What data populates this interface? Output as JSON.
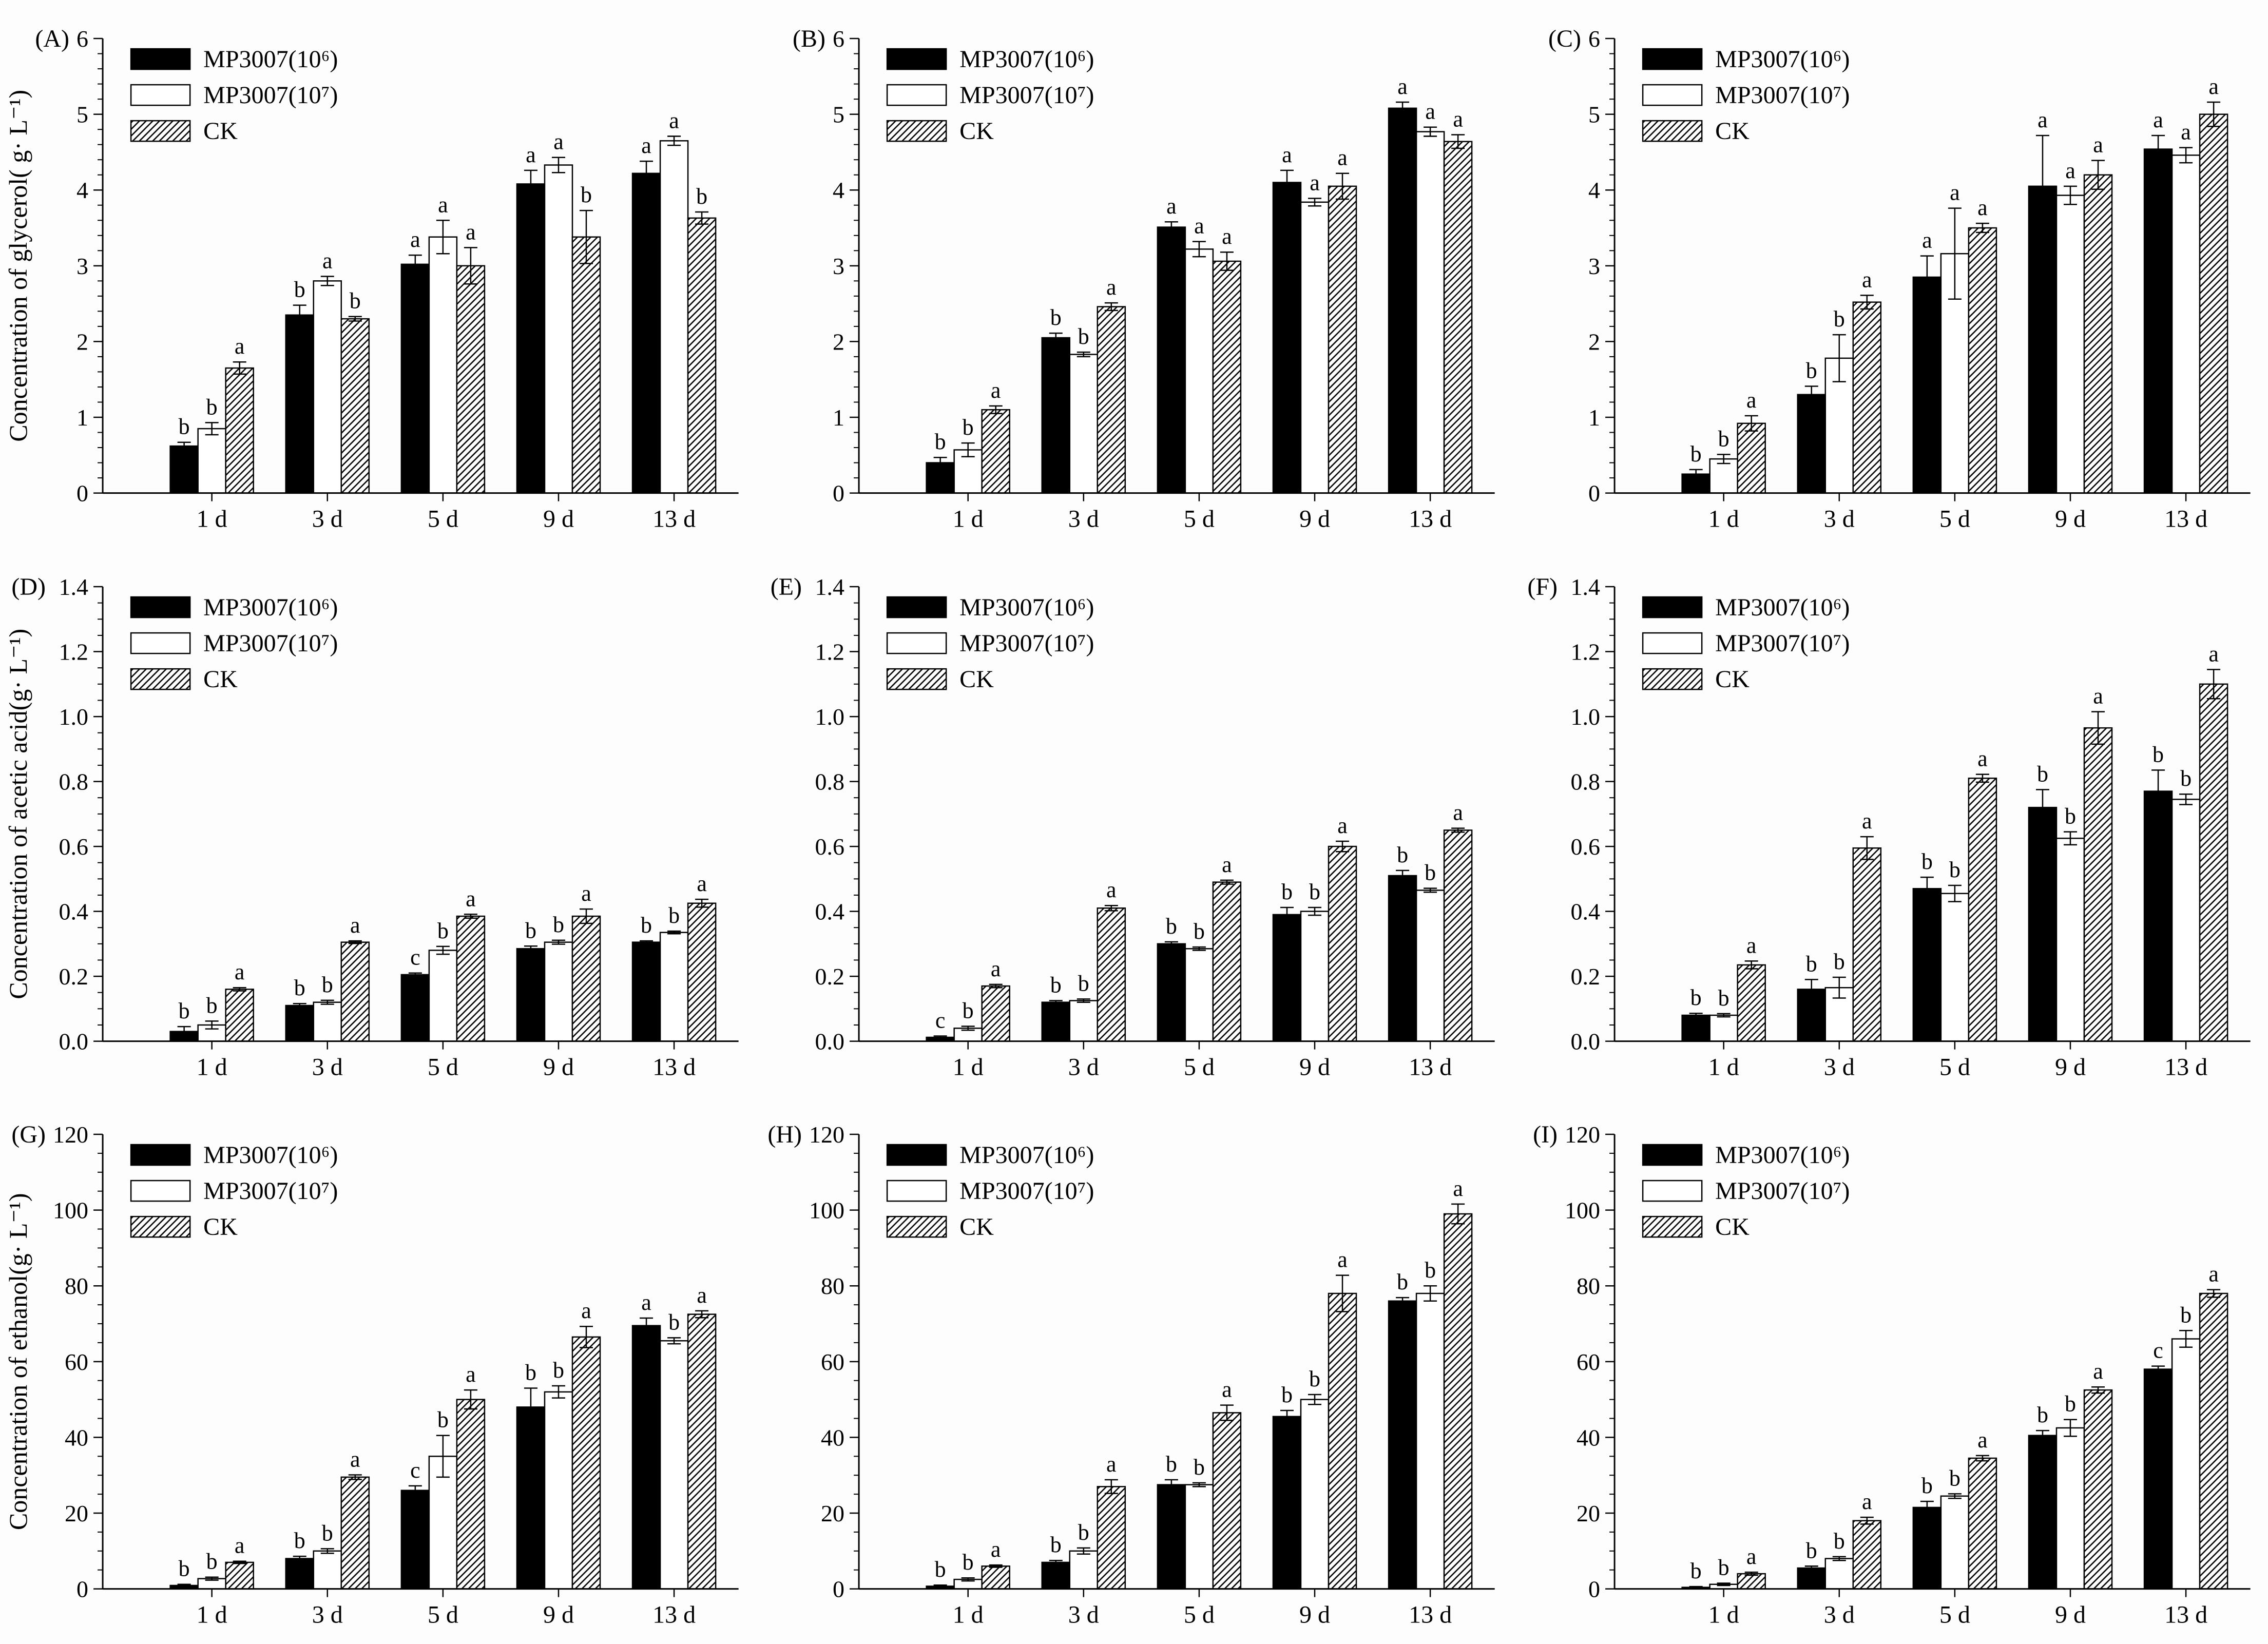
{
  "figure": {
    "background": "#fdfdfd",
    "ink_color": "#000000",
    "categories": [
      "1 d",
      "3 d",
      "5 d",
      "9 d",
      "13 d"
    ],
    "series_names": [
      "MP3007(10⁶)",
      "MP3007(10⁷)",
      "CK"
    ],
    "series_styles": [
      "solid-black",
      "open-white",
      "hatched"
    ]
  },
  "chart_data": [
    {
      "type": "bar",
      "panel_label": "(A)",
      "ylabel": "Concentration of glycerol( g· L⁻¹)",
      "ylim": [
        0,
        6
      ],
      "ytick_step": 1,
      "yminor_step": 0.2,
      "ytick_decimals": 0,
      "grid": false,
      "legend_position": "top-left",
      "categories": [
        "1 d",
        "3 d",
        "5 d",
        "9 d",
        "13 d"
      ],
      "series": [
        {
          "name": "MP3007(10⁶)",
          "style": "solid-black",
          "values": [
            0.62,
            2.35,
            3.02,
            4.08,
            4.22
          ],
          "errors": [
            0.05,
            0.13,
            0.12,
            0.18,
            0.16
          ],
          "letters": [
            "b",
            "b",
            "a",
            "a",
            "a"
          ]
        },
        {
          "name": "MP3007(10⁷)",
          "style": "open-white",
          "values": [
            0.85,
            2.8,
            3.38,
            4.33,
            4.65
          ],
          "errors": [
            0.08,
            0.06,
            0.22,
            0.1,
            0.06
          ],
          "letters": [
            "b",
            "a",
            "a",
            "a",
            "a"
          ]
        },
        {
          "name": "CK",
          "style": "hatched",
          "values": [
            1.65,
            2.3,
            3.0,
            3.38,
            3.63
          ],
          "errors": [
            0.08,
            0.03,
            0.24,
            0.35,
            0.08
          ],
          "letters": [
            "a",
            "b",
            "a",
            "b",
            "b"
          ]
        }
      ]
    },
    {
      "type": "bar",
      "panel_label": "(B)",
      "ylabel": "",
      "ylim": [
        0,
        6
      ],
      "ytick_step": 1,
      "yminor_step": 0.2,
      "ytick_decimals": 0,
      "grid": false,
      "legend_position": "top-left",
      "categories": [
        "1 d",
        "3 d",
        "5 d",
        "9 d",
        "13 d"
      ],
      "series": [
        {
          "name": "MP3007(10⁶)",
          "style": "solid-black",
          "values": [
            0.4,
            2.05,
            3.51,
            4.1,
            5.08
          ],
          "errors": [
            0.07,
            0.06,
            0.07,
            0.16,
            0.08
          ],
          "letters": [
            "b",
            "b",
            "a",
            "a",
            "a"
          ]
        },
        {
          "name": "MP3007(10⁷)",
          "style": "open-white",
          "values": [
            0.57,
            1.83,
            3.22,
            3.84,
            4.77
          ],
          "errors": [
            0.09,
            0.03,
            0.1,
            0.05,
            0.06
          ],
          "letters": [
            "b",
            "b",
            "a",
            "a",
            "a"
          ]
        },
        {
          "name": "CK",
          "style": "hatched",
          "values": [
            1.1,
            2.46,
            3.06,
            4.05,
            4.64
          ],
          "errors": [
            0.05,
            0.05,
            0.12,
            0.17,
            0.09
          ],
          "letters": [
            "a",
            "a",
            "a",
            "a",
            "a"
          ]
        }
      ]
    },
    {
      "type": "bar",
      "panel_label": "(C)",
      "ylabel": "",
      "ylim": [
        0,
        6
      ],
      "ytick_step": 1,
      "yminor_step": 0.2,
      "ytick_decimals": 0,
      "grid": false,
      "legend_position": "top-left",
      "categories": [
        "1 d",
        "3 d",
        "5 d",
        "9 d",
        "13 d"
      ],
      "series": [
        {
          "name": "MP3007(10⁶)",
          "style": "solid-black",
          "values": [
            0.25,
            1.3,
            2.85,
            4.05,
            4.54
          ],
          "errors": [
            0.06,
            0.11,
            0.28,
            0.67,
            0.18
          ],
          "letters": [
            "b",
            "b",
            "a",
            "a",
            "a"
          ]
        },
        {
          "name": "MP3007(10⁷)",
          "style": "open-white",
          "values": [
            0.45,
            1.78,
            3.16,
            3.93,
            4.46
          ],
          "errors": [
            0.06,
            0.31,
            0.6,
            0.12,
            0.1
          ],
          "letters": [
            "b",
            "b",
            "a",
            "a",
            "a"
          ]
        },
        {
          "name": "CK",
          "style": "hatched",
          "values": [
            0.92,
            2.52,
            3.5,
            4.2,
            5.0
          ],
          "errors": [
            0.1,
            0.09,
            0.06,
            0.19,
            0.16
          ],
          "letters": [
            "a",
            "a",
            "a",
            "a",
            "a"
          ]
        }
      ]
    },
    {
      "type": "bar",
      "panel_label": "(D)",
      "ylabel": "Concentration of acetic acid(g· L⁻¹)",
      "ylim": [
        0,
        1.4
      ],
      "ytick_step": 0.2,
      "yminor_step": 0.05,
      "ytick_decimals": 1,
      "grid": false,
      "legend_position": "top-left",
      "categories": [
        "1 d",
        "3 d",
        "5 d",
        "9 d",
        "13 d"
      ],
      "series": [
        {
          "name": "MP3007(10⁶)",
          "style": "solid-black",
          "values": [
            0.03,
            0.11,
            0.205,
            0.285,
            0.305
          ],
          "errors": [
            0.015,
            0.006,
            0.005,
            0.008,
            0.004
          ],
          "letters": [
            "b",
            "b",
            "c",
            "b",
            "b"
          ]
        },
        {
          "name": "MP3007(10⁷)",
          "style": "open-white",
          "values": [
            0.05,
            0.12,
            0.28,
            0.305,
            0.335
          ],
          "errors": [
            0.012,
            0.006,
            0.012,
            0.006,
            0.004
          ],
          "letters": [
            "b",
            "b",
            "b",
            "b",
            "b"
          ]
        },
        {
          "name": "CK",
          "style": "hatched",
          "values": [
            0.16,
            0.305,
            0.385,
            0.385,
            0.425
          ],
          "errors": [
            0.005,
            0.004,
            0.006,
            0.022,
            0.012
          ],
          "letters": [
            "a",
            "a",
            "a",
            "a",
            "a"
          ]
        }
      ]
    },
    {
      "type": "bar",
      "panel_label": "(E)",
      "ylabel": "",
      "ylim": [
        0,
        1.4
      ],
      "ytick_step": 0.2,
      "yminor_step": 0.05,
      "ytick_decimals": 1,
      "grid": false,
      "legend_position": "top-left",
      "categories": [
        "1 d",
        "3 d",
        "5 d",
        "9 d",
        "13 d"
      ],
      "series": [
        {
          "name": "MP3007(10⁶)",
          "style": "solid-black",
          "values": [
            0.012,
            0.12,
            0.3,
            0.39,
            0.51
          ],
          "errors": [
            0.004,
            0.005,
            0.006,
            0.022,
            0.016
          ],
          "letters": [
            "c",
            "b",
            "b",
            "b",
            "b"
          ]
        },
        {
          "name": "MP3007(10⁷)",
          "style": "open-white",
          "values": [
            0.04,
            0.125,
            0.285,
            0.4,
            0.465
          ],
          "errors": [
            0.006,
            0.005,
            0.005,
            0.012,
            0.006
          ],
          "letters": [
            "b",
            "b",
            "b",
            "b",
            "b"
          ]
        },
        {
          "name": "CK",
          "style": "hatched",
          "values": [
            0.17,
            0.41,
            0.49,
            0.6,
            0.65
          ],
          "errors": [
            0.005,
            0.008,
            0.006,
            0.016,
            0.006
          ],
          "letters": [
            "a",
            "a",
            "a",
            "a",
            "a"
          ]
        }
      ]
    },
    {
      "type": "bar",
      "panel_label": "(F)",
      "ylabel": "",
      "ylim": [
        0,
        1.4
      ],
      "ytick_step": 0.2,
      "yminor_step": 0.05,
      "ytick_decimals": 1,
      "grid": false,
      "legend_position": "top-left",
      "categories": [
        "1 d",
        "3 d",
        "5 d",
        "9 d",
        "13 d"
      ],
      "series": [
        {
          "name": "MP3007(10⁶)",
          "style": "solid-black",
          "values": [
            0.08,
            0.16,
            0.47,
            0.72,
            0.77
          ],
          "errors": [
            0.006,
            0.03,
            0.035,
            0.055,
            0.065
          ],
          "letters": [
            "b",
            "b",
            "b",
            "b",
            "b"
          ]
        },
        {
          "name": "MP3007(10⁷)",
          "style": "open-white",
          "values": [
            0.08,
            0.165,
            0.455,
            0.625,
            0.745
          ],
          "errors": [
            0.005,
            0.032,
            0.025,
            0.02,
            0.016
          ],
          "letters": [
            "b",
            "b",
            "b",
            "b",
            "b"
          ]
        },
        {
          "name": "CK",
          "style": "hatched",
          "values": [
            0.235,
            0.595,
            0.81,
            0.965,
            1.1
          ],
          "errors": [
            0.012,
            0.035,
            0.012,
            0.05,
            0.045
          ],
          "letters": [
            "a",
            "a",
            "a",
            "a",
            "a"
          ]
        }
      ]
    },
    {
      "type": "bar",
      "panel_label": "(G)",
      "ylabel": "Concentration of ethanol(g· L⁻¹)",
      "ylim": [
        0,
        120
      ],
      "ytick_step": 20,
      "yminor_step": 5,
      "ytick_decimals": 0,
      "grid": false,
      "legend_position": "top-left",
      "categories": [
        "1 d",
        "3 d",
        "5 d",
        "9 d",
        "13 d"
      ],
      "series": [
        {
          "name": "MP3007(10⁶)",
          "style": "solid-black",
          "values": [
            0.9,
            8,
            26,
            48,
            69.5
          ],
          "errors": [
            0.3,
            0.6,
            1.2,
            5.0,
            2.0
          ],
          "letters": [
            "b",
            "b",
            "c",
            "b",
            "a"
          ]
        },
        {
          "name": "MP3007(10⁷)",
          "style": "open-white",
          "values": [
            2.7,
            10,
            35,
            52,
            65.5
          ],
          "errors": [
            0.4,
            0.6,
            5.5,
            1.6,
            0.8
          ],
          "letters": [
            "b",
            "b",
            "b",
            "b",
            "b"
          ]
        },
        {
          "name": "CK",
          "style": "hatched",
          "values": [
            7,
            29.5,
            50,
            66.5,
            72.5
          ],
          "errors": [
            0.3,
            0.6,
            2.5,
            2.8,
            0.9
          ],
          "letters": [
            "a",
            "a",
            "a",
            "a",
            "a"
          ]
        }
      ]
    },
    {
      "type": "bar",
      "panel_label": "(H)",
      "ylabel": "",
      "ylim": [
        0,
        120
      ],
      "ytick_step": 20,
      "yminor_step": 5,
      "ytick_decimals": 0,
      "grid": false,
      "legend_position": "top-left",
      "categories": [
        "1 d",
        "3 d",
        "5 d",
        "9 d",
        "13 d"
      ],
      "series": [
        {
          "name": "MP3007(10⁶)",
          "style": "solid-black",
          "values": [
            0.7,
            7,
            27.5,
            45.5,
            76
          ],
          "errors": [
            0.3,
            0.5,
            1.3,
            1.6,
            0.9
          ],
          "letters": [
            "b",
            "b",
            "b",
            "b",
            "b"
          ]
        },
        {
          "name": "MP3007(10⁷)",
          "style": "open-white",
          "values": [
            2.5,
            10,
            27.5,
            50,
            78
          ],
          "errors": [
            0.4,
            0.8,
            0.5,
            1.3,
            2.0
          ],
          "letters": [
            "b",
            "b",
            "b",
            "b",
            "b"
          ]
        },
        {
          "name": "CK",
          "style": "hatched",
          "values": [
            6,
            27,
            46.5,
            78,
            99
          ],
          "errors": [
            0.3,
            1.8,
            2.0,
            4.8,
            2.6
          ],
          "letters": [
            "a",
            "a",
            "a",
            "a",
            "a"
          ]
        }
      ]
    },
    {
      "type": "bar",
      "panel_label": "(I)",
      "ylabel": "",
      "ylim": [
        0,
        120
      ],
      "ytick_step": 20,
      "yminor_step": 5,
      "ytick_decimals": 0,
      "grid": false,
      "legend_position": "top-left",
      "categories": [
        "1 d",
        "3 d",
        "5 d",
        "9 d",
        "13 d"
      ],
      "series": [
        {
          "name": "MP3007(10⁶)",
          "style": "solid-black",
          "values": [
            0.4,
            5.5,
            21.5,
            40.5,
            58
          ],
          "errors": [
            0.2,
            0.5,
            1.6,
            1.3,
            0.8
          ],
          "letters": [
            "b",
            "b",
            "b",
            "b",
            "c"
          ]
        },
        {
          "name": "MP3007(10⁷)",
          "style": "open-white",
          "values": [
            1.2,
            8,
            24.5,
            42.5,
            66
          ],
          "errors": [
            0.3,
            0.5,
            0.6,
            2.2,
            2.2
          ],
          "letters": [
            "b",
            "b",
            "b",
            "b",
            "b"
          ]
        },
        {
          "name": "CK",
          "style": "hatched",
          "values": [
            4,
            18,
            34.5,
            52.5,
            78
          ],
          "errors": [
            0.4,
            0.9,
            0.7,
            0.8,
            1.0
          ],
          "letters": [
            "a",
            "a",
            "a",
            "a",
            "a"
          ]
        }
      ]
    }
  ]
}
